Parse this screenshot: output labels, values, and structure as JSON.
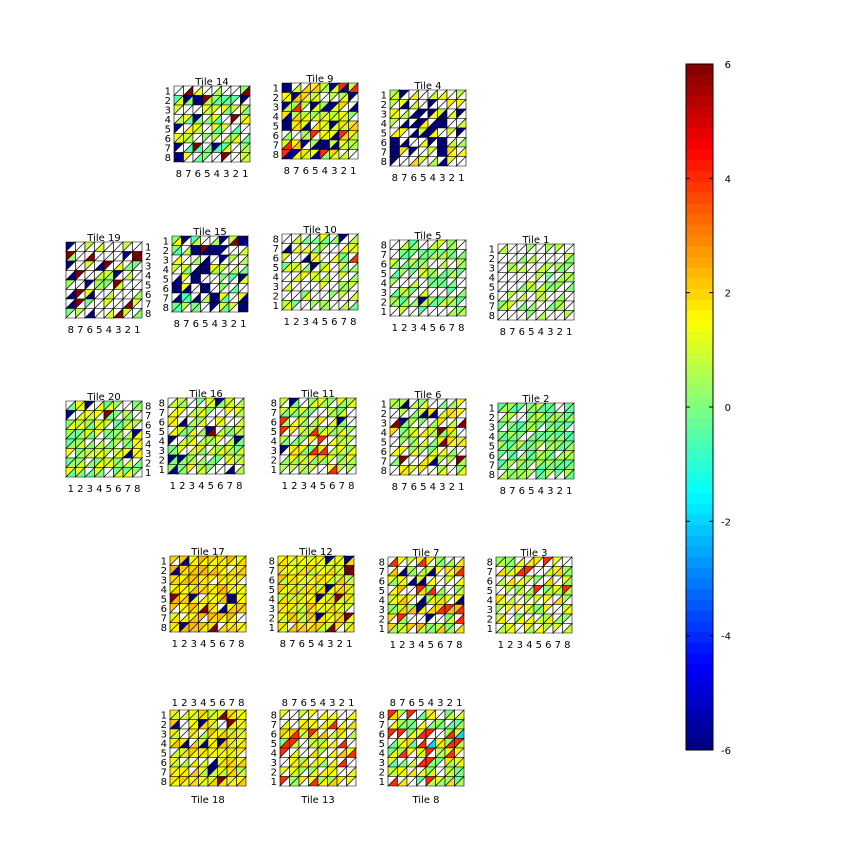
{
  "chart_data": {
    "type": "heatmap",
    "grid_size": 8,
    "cell_split": "triangles",
    "colormap": "jet",
    "colorbar": {
      "min": -6,
      "max": 6,
      "ticks": [
        "-6",
        "-4",
        "-2",
        "0",
        "2",
        "4",
        "6"
      ]
    },
    "tick_labels": [
      "1",
      "2",
      "3",
      "4",
      "5",
      "6",
      "7",
      "8"
    ],
    "tiles": [
      {
        "id": "14",
        "title": "Tile 14",
        "title_pos": "top",
        "x_dir": "desc",
        "y_dir": "down",
        "x_side": "bottom",
        "y_side": "left",
        "base": 0.5,
        "amp": 1.2,
        "lo": -6,
        "hi": 6,
        "f_lo": 0.08,
        "f_hi": 0.05,
        "f_blank": 0.45
      },
      {
        "id": "9",
        "title": "Tile 9",
        "title_pos": "top",
        "x_dir": "desc",
        "y_dir": "down",
        "x_side": "bottom",
        "y_side": "left",
        "base": 1.2,
        "amp": 1.0,
        "lo": -6,
        "hi": 4,
        "f_lo": 0.25,
        "f_hi": 0.06,
        "f_blank": 0.1
      },
      {
        "id": "4",
        "title": "Tile 4",
        "title_pos": "top",
        "x_dir": "desc",
        "y_dir": "down",
        "x_side": "bottom",
        "y_side": "left",
        "base": 1.2,
        "amp": 0.8,
        "lo": -6,
        "hi": 3,
        "f_lo": 0.2,
        "f_hi": 0.0,
        "f_blank": 0.45
      },
      {
        "id": "19",
        "title": "Tile 19",
        "title_pos": "top",
        "x_dir": "desc",
        "y_dir": "down",
        "x_side": "bottom",
        "y_side": "right",
        "base": 0.5,
        "amp": 0.8,
        "lo": -6,
        "hi": 6,
        "f_lo": 0.05,
        "f_hi": 0.05,
        "f_blank": 0.78
      },
      {
        "id": "15",
        "title": "Tile 15",
        "title_pos": "top",
        "x_dir": "desc",
        "y_dir": "down",
        "x_side": "bottom",
        "y_side": "left",
        "base": 0.5,
        "amp": 1.2,
        "lo": -6,
        "hi": 6,
        "f_lo": 0.22,
        "f_hi": 0.02,
        "f_blank": 0.38
      },
      {
        "id": "10",
        "title": "Tile 10",
        "title_pos": "top",
        "x_dir": "asc",
        "y_dir": "up",
        "x_side": "bottom",
        "y_side": "left",
        "base": 0.6,
        "amp": 0.9,
        "lo": -6,
        "hi": 4,
        "f_lo": 0.02,
        "f_hi": 0.03,
        "f_blank": 0.55
      },
      {
        "id": "5",
        "title": "Tile 5",
        "title_pos": "top",
        "x_dir": "asc",
        "y_dir": "up",
        "x_side": "bottom",
        "y_side": "left",
        "base": 0.3,
        "amp": 0.8,
        "lo": -6,
        "hi": 6,
        "f_lo": 0.02,
        "f_hi": 0.02,
        "f_blank": 0.4
      },
      {
        "id": "1",
        "title": "Tile 1",
        "title_pos": "top",
        "x_dir": "desc",
        "y_dir": "down",
        "x_side": "bottom",
        "y_side": "left",
        "base": 0.4,
        "amp": 0.6,
        "lo": 0,
        "hi": 2,
        "f_lo": 0.0,
        "f_hi": 0.0,
        "f_blank": 0.6
      },
      {
        "id": "20",
        "title": "Tile 20",
        "title_pos": "top",
        "x_dir": "asc",
        "y_dir": "up",
        "x_side": "bottom",
        "y_side": "right",
        "base": 0.6,
        "amp": 1.0,
        "lo": -6,
        "hi": 6,
        "f_lo": 0.04,
        "f_hi": 0.02,
        "f_blank": 0.2
      },
      {
        "id": "16",
        "title": "Tile 16",
        "title_pos": "top",
        "x_dir": "asc",
        "y_dir": "up",
        "x_side": "bottom",
        "y_side": "left",
        "base": 0.8,
        "amp": 1.0,
        "lo": -6,
        "hi": 6,
        "f_lo": 0.05,
        "f_hi": 0.02,
        "f_blank": 0.3
      },
      {
        "id": "11",
        "title": "Tile 11",
        "title_pos": "top",
        "x_dir": "asc",
        "y_dir": "up",
        "x_side": "bottom",
        "y_side": "left",
        "base": 0.9,
        "amp": 1.0,
        "lo": -6,
        "hi": 4,
        "f_lo": 0.01,
        "f_hi": 0.04,
        "f_blank": 0.35
      },
      {
        "id": "6",
        "title": "Tile 6",
        "title_pos": "top",
        "x_dir": "desc",
        "y_dir": "down",
        "x_side": "bottom",
        "y_side": "left",
        "base": 0.9,
        "amp": 1.0,
        "lo": -6,
        "hi": 6,
        "f_lo": 0.03,
        "f_hi": 0.04,
        "f_blank": 0.38
      },
      {
        "id": "2",
        "title": "Tile 2",
        "title_pos": "top",
        "x_dir": "desc",
        "y_dir": "down",
        "x_side": "bottom",
        "y_side": "left",
        "base": 0.1,
        "amp": 0.7,
        "lo": -1,
        "hi": 2,
        "f_lo": 0.0,
        "f_hi": 0.0,
        "f_blank": 0.25
      },
      {
        "id": "17",
        "title": "Tile 17",
        "title_pos": "top",
        "x_dir": "asc",
        "y_dir": "down",
        "x_side": "bottom",
        "y_side": "left",
        "base": 1.8,
        "amp": 0.6,
        "lo": -6,
        "hi": 6,
        "f_lo": 0.05,
        "f_hi": 0.03,
        "f_blank": 0.06
      },
      {
        "id": "12",
        "title": "Tile 12",
        "title_pos": "top",
        "x_dir": "desc",
        "y_dir": "up",
        "x_side": "bottom",
        "y_side": "left",
        "base": 1.5,
        "amp": 0.8,
        "lo": -6,
        "hi": 6,
        "f_lo": 0.06,
        "f_hi": 0.02,
        "f_blank": 0.04
      },
      {
        "id": "7",
        "title": "Tile 7",
        "title_pos": "top",
        "x_dir": "asc",
        "y_dir": "up",
        "x_side": "bottom",
        "y_side": "left",
        "base": 1.2,
        "amp": 1.2,
        "lo": -6,
        "hi": 4,
        "f_lo": 0.05,
        "f_hi": 0.06,
        "f_blank": 0.3
      },
      {
        "id": "3",
        "title": "Tile 3",
        "title_pos": "top",
        "x_dir": "asc",
        "y_dir": "up",
        "x_side": "bottom",
        "y_side": "left",
        "base": 1.0,
        "amp": 1.0,
        "lo": -1,
        "hi": 4,
        "f_lo": 0.0,
        "f_hi": 0.05,
        "f_blank": 0.4
      },
      {
        "id": "18",
        "title": "Tile 18",
        "title_pos": "bottom",
        "x_dir": "asc",
        "y_dir": "down",
        "x_side": "top",
        "y_side": "left",
        "base": 1.4,
        "amp": 0.8,
        "lo": -6,
        "hi": 6,
        "f_lo": 0.05,
        "f_hi": 0.03,
        "f_blank": 0.15
      },
      {
        "id": "13",
        "title": "Tile 13",
        "title_pos": "bottom",
        "x_dir": "desc",
        "y_dir": "up",
        "x_side": "top",
        "y_side": "left",
        "base": 1.2,
        "amp": 1.0,
        "lo": -1,
        "hi": 4,
        "f_lo": 0.0,
        "f_hi": 0.06,
        "f_blank": 0.35
      },
      {
        "id": "8",
        "title": "Tile 8",
        "title_pos": "bottom",
        "x_dir": "desc",
        "y_dir": "up",
        "x_side": "top",
        "y_side": "left",
        "base": 0.8,
        "amp": 1.2,
        "lo": -2,
        "hi": 4,
        "f_lo": 0.04,
        "f_hi": 0.06,
        "f_blank": 0.3
      }
    ]
  }
}
